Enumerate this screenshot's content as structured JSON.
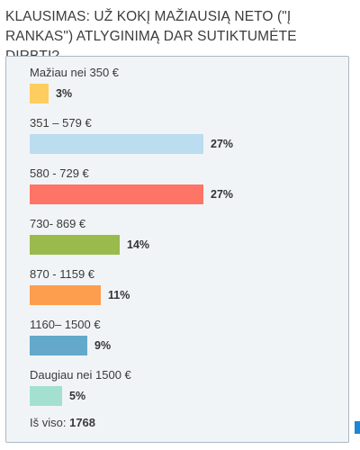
{
  "question": "KLAUSIMAS: UŽ KOKĮ MAŽIAUSIĄ NETO (\"Į RANKAS\") ATLYGINIMĄ DAR SUTIKTUMĖTE DIRBTI?",
  "total_label": "Iš viso:",
  "total_value": "1768",
  "chart_data": {
    "type": "bar",
    "orientation": "horizontal",
    "categories": [
      "Mažiau nei 350 €",
      "351 – 579 €",
      "580 - 729 €",
      "730- 869 €",
      "870 - 1159 €",
      "1160– 1500 €",
      "Daugiau nei 1500 €"
    ],
    "values": [
      3,
      27,
      27,
      14,
      11,
      9,
      5
    ],
    "value_labels": [
      "3%",
      "27%",
      "27%",
      "14%",
      "11%",
      "9%",
      "5%"
    ],
    "colors": [
      "#fdcd5f",
      "#bcdcef",
      "#fe7466",
      "#99bb4c",
      "#fd9e4e",
      "#64a9cc",
      "#a3e0cf"
    ],
    "grid": false,
    "legend": "none"
  }
}
